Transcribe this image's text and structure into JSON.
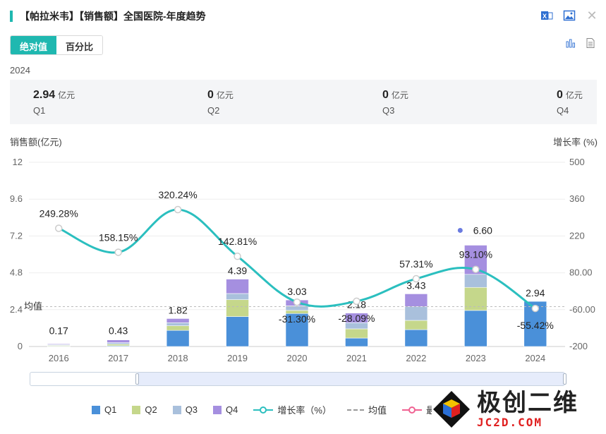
{
  "header": {
    "title": "【帕拉米韦】【销售额】全国医院-年度趋势",
    "icons": [
      "excel-export-icon",
      "image-export-icon",
      "close-icon"
    ]
  },
  "toggle": {
    "absolute_label": "绝对值",
    "percent_label": "百分比",
    "active": "absolute"
  },
  "view_icons": [
    "bar-chart-icon",
    "document-icon"
  ],
  "year": "2024",
  "summary": [
    {
      "value": "2.94",
      "unit": "亿元",
      "quarter": "Q1"
    },
    {
      "value": "0",
      "unit": "亿元",
      "quarter": "Q2"
    },
    {
      "value": "0",
      "unit": "亿元",
      "quarter": "Q3"
    },
    {
      "value": "0",
      "unit": "亿元",
      "quarter": "Q4"
    }
  ],
  "axis": {
    "left_title": "销售额(亿元)",
    "right_title": "增长率 (%)"
  },
  "colors": {
    "Q1": "#4a90d9",
    "Q2": "#c5d78b",
    "Q3": "#a9c0dc",
    "Q4": "#a58fe0",
    "growth": "#2bbfbf",
    "accent": "#1fb8b0",
    "max_dot": "#6a7be0"
  },
  "legend": {
    "q1": "Q1",
    "q2": "Q2",
    "q3": "Q3",
    "q4": "Q4",
    "growth": "增长率（%）",
    "avg": "均值",
    "max": "最"
  },
  "watermark": {
    "cn": "极创二维",
    "en": "JC2D.COM"
  },
  "chart_data": {
    "type": "bar",
    "categories": [
      "2016",
      "2017",
      "2018",
      "2019",
      "2020",
      "2021",
      "2022",
      "2023",
      "2024"
    ],
    "series": [
      {
        "name": "Q1",
        "values": [
          0.02,
          0.05,
          1.05,
          1.95,
          2.15,
          0.55,
          1.1,
          2.35,
          2.94
        ]
      },
      {
        "name": "Q2",
        "values": [
          0.05,
          0.1,
          0.3,
          1.1,
          0.2,
          0.6,
          0.6,
          1.5,
          0
        ]
      },
      {
        "name": "Q3",
        "values": [
          0.05,
          0.1,
          0.2,
          0.4,
          0.3,
          0.4,
          0.9,
          0.85,
          0
        ]
      },
      {
        "name": "Q4",
        "values": [
          0.05,
          0.18,
          0.27,
          0.94,
          0.38,
          0.63,
          0.83,
          1.9,
          0
        ]
      }
    ],
    "totals": [
      "0.17",
      "0.43",
      "1.82",
      "4.39",
      "3.03",
      "2.18",
      "3.43",
      "6.60",
      "2.94"
    ],
    "growth": {
      "name": "增长率（%）",
      "values": [
        249.28,
        158.15,
        320.24,
        142.81,
        -31.3,
        -28.09,
        57.31,
        93.1,
        -55.42
      ],
      "labels": [
        "249.28%",
        "158.15%",
        "320.24%",
        "142.81%",
        "-31.30%",
        "-28.09%",
        "57.31%",
        "93.10%",
        "-55.42%"
      ]
    },
    "average": {
      "label": "均值",
      "value": 2.6
    },
    "max_point": {
      "category": "2023",
      "label": "6.60"
    },
    "ylim": [
      0,
      12
    ],
    "y_ticks": [
      "0",
      "2.4",
      "4.8",
      "7.2",
      "9.6",
      "12"
    ],
    "y2lim": [
      -200,
      500
    ],
    "y2_ticks": [
      "-200",
      "-60.00",
      "80.00",
      "220",
      "360",
      "500"
    ],
    "grid": true,
    "legend_position": "bottom"
  }
}
